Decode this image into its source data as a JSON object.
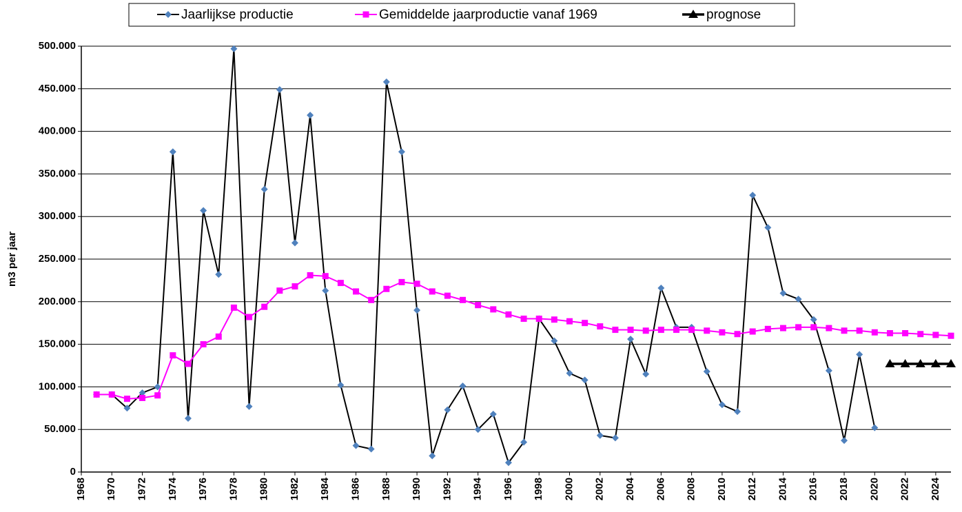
{
  "chart_data": {
    "type": "line",
    "y_label": "m3 per jaar",
    "x": [
      1969,
      1970,
      1971,
      1972,
      1973,
      1974,
      1975,
      1976,
      1977,
      1978,
      1979,
      1980,
      1981,
      1982,
      1983,
      1984,
      1985,
      1986,
      1987,
      1988,
      1989,
      1990,
      1991,
      1992,
      1993,
      1994,
      1995,
      1996,
      1997,
      1998,
      1999,
      2000,
      2001,
      2002,
      2003,
      2004,
      2005,
      2006,
      2007,
      2008,
      2009,
      2010,
      2011,
      2012,
      2013,
      2014,
      2015,
      2016,
      2017,
      2018,
      2019,
      2020,
      2021,
      2022,
      2023,
      2024,
      2025
    ],
    "series": [
      {
        "name": "Jaarlijkse productie",
        "color": "#000000",
        "marker": "diamond",
        "marker_color": "#4f81bd",
        "values": [
          91000,
          91000,
          75000,
          93000,
          100000,
          376000,
          63000,
          307000,
          232000,
          497000,
          77000,
          332000,
          449000,
          269000,
          419000,
          213000,
          102000,
          31000,
          27000,
          458000,
          376000,
          190000,
          19000,
          73000,
          101000,
          50000,
          68000,
          11000,
          35000,
          180000,
          154000,
          116000,
          108000,
          43000,
          40000,
          156000,
          115000,
          216000,
          170000,
          170000,
          118000,
          79000,
          71000,
          325000,
          287000,
          210000,
          203000,
          179000,
          119000,
          37000,
          138000,
          52000,
          null,
          null,
          null,
          null,
          null
        ]
      },
      {
        "name": "Gemiddelde jaarproductie vanaf 1969",
        "color": "#ff00ff",
        "marker": "square",
        "marker_color": "#ff00ff",
        "values": [
          91000,
          91000,
          86000,
          87000,
          90000,
          137000,
          127000,
          150000,
          159000,
          193000,
          182000,
          194000,
          213000,
          218000,
          231000,
          230000,
          222000,
          212000,
          202000,
          215000,
          223000,
          221000,
          212000,
          207000,
          202000,
          196000,
          191000,
          185000,
          180000,
          180000,
          179000,
          177000,
          175000,
          171000,
          167000,
          167000,
          166000,
          167000,
          167000,
          167000,
          166000,
          164000,
          162000,
          165000,
          168000,
          169000,
          170000,
          170000,
          169000,
          166000,
          166000,
          164000,
          163000,
          163000,
          162000,
          161000,
          160000
        ]
      },
      {
        "name": "prognose",
        "color": "#000000",
        "marker": "triangle",
        "marker_color": "#000000",
        "values": [
          null,
          null,
          null,
          null,
          null,
          null,
          null,
          null,
          null,
          null,
          null,
          null,
          null,
          null,
          null,
          null,
          null,
          null,
          null,
          null,
          null,
          null,
          null,
          null,
          null,
          null,
          null,
          null,
          null,
          null,
          null,
          null,
          null,
          null,
          null,
          null,
          null,
          null,
          null,
          null,
          null,
          null,
          null,
          null,
          null,
          null,
          null,
          null,
          null,
          null,
          null,
          null,
          127000,
          127000,
          127000,
          127000,
          127000
        ]
      }
    ],
    "xlim": [
      1968,
      2025
    ],
    "xticks": [
      1968,
      1970,
      1972,
      1974,
      1976,
      1978,
      1980,
      1982,
      1984,
      1986,
      1988,
      1990,
      1992,
      1994,
      1996,
      1998,
      2000,
      2002,
      2004,
      2006,
      2008,
      2010,
      2012,
      2014,
      2016,
      2018,
      2020,
      2022,
      2024
    ],
    "ylim": [
      0,
      500000
    ],
    "yticks": [
      0,
      {
        "value": 50000,
        "label": "50.000"
      },
      {
        "value": 100000,
        "label": "100.000"
      },
      {
        "value": 150000,
        "label": "150.000"
      },
      {
        "value": 200000,
        "label": "200.000"
      },
      {
        "value": 250000,
        "label": "250.000"
      },
      {
        "value": 300000,
        "label": "300.000"
      },
      {
        "value": 350000,
        "label": "350.000"
      },
      {
        "value": 400000,
        "label": "400.000"
      },
      {
        "value": 450000,
        "label": "450.000"
      },
      {
        "value": 500000,
        "label": "500.000"
      }
    ],
    "grid": true,
    "legend": "top"
  }
}
